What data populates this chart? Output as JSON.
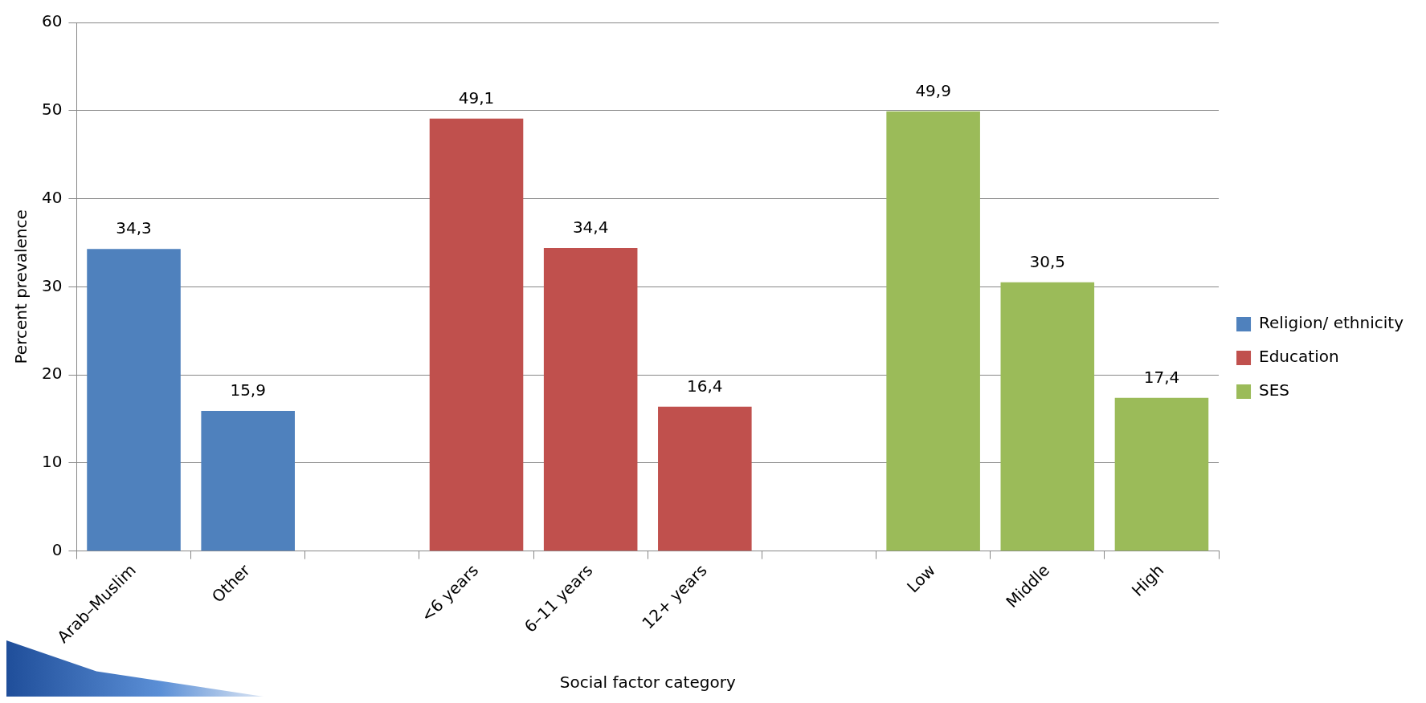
{
  "chart_data": {
    "type": "bar",
    "xlabel": "Social factor category",
    "ylabel": "Percent prevalence",
    "categories": [
      "Arab–Muslim",
      "Other",
      null,
      "<6 years",
      "6–11 years",
      "12+ years",
      null,
      "Low",
      "Middle",
      "High"
    ],
    "series": [
      {
        "name": "Religion/ ethnicity",
        "color": "#4f81bd",
        "values": [
          34.3,
          15.9,
          null,
          null,
          null,
          null,
          null,
          null,
          null,
          null
        ],
        "value_labels": [
          "34,3",
          "15,9",
          null,
          null,
          null,
          null,
          null,
          null,
          null,
          null
        ]
      },
      {
        "name": "Education",
        "color": "#c0504d",
        "values": [
          null,
          null,
          null,
          49.1,
          34.4,
          16.4,
          null,
          null,
          null,
          null
        ],
        "value_labels": [
          null,
          null,
          null,
          "49,1",
          "34,4",
          "16,4",
          null,
          null,
          null,
          null
        ]
      },
      {
        "name": "SES",
        "color": "#9bbb59",
        "values": [
          null,
          null,
          null,
          null,
          null,
          null,
          null,
          49.9,
          30.5,
          17.4
        ],
        "value_labels": [
          null,
          null,
          null,
          null,
          null,
          null,
          null,
          "49,9",
          "30,5",
          "17,4"
        ]
      }
    ],
    "ylim": [
      0,
      60
    ],
    "yticks": [
      0,
      10,
      20,
      30,
      40,
      50,
      60
    ],
    "grid": "y",
    "legend": "right"
  }
}
